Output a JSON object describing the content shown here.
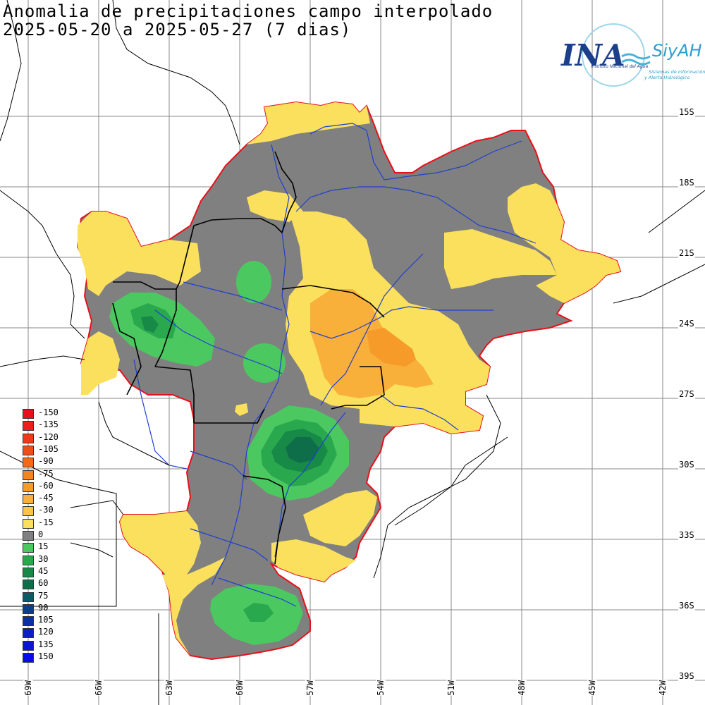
{
  "title": {
    "line1": "Anomalia de precipitaciones campo interpolado",
    "line2": "2025-05-20 a 2025-05-27 (7 dias)"
  },
  "logo": {
    "name": "INA",
    "brand": "SiyAH",
    "subtitle": "Instituto Nacional del Agua",
    "tagline1": "Sistemas de información",
    "tagline2": "y Alerta Hidrológico"
  },
  "legend": [
    {
      "label": "-150",
      "color": "#e8101a"
    },
    {
      "label": "-135",
      "color": "#ec2018"
    },
    {
      "label": "-120",
      "color": "#ee3a18"
    },
    {
      "label": "-105",
      "color": "#f04e18"
    },
    {
      "label": "-90",
      "color": "#f26a1a"
    },
    {
      "label": "-75",
      "color": "#f4841e"
    },
    {
      "label": "-60",
      "color": "#f69a2a"
    },
    {
      "label": "-45",
      "color": "#f8b03a"
    },
    {
      "label": "-30",
      "color": "#f9c648"
    },
    {
      "label": "-15",
      "color": "#fbe05e"
    },
    {
      "label": "0",
      "color": "#808080"
    },
    {
      "label": "15",
      "color": "#4cc860"
    },
    {
      "label": "30",
      "color": "#2aa84e"
    },
    {
      "label": "45",
      "color": "#188a48"
    },
    {
      "label": "60",
      "color": "#0f6e4a"
    },
    {
      "label": "75",
      "color": "#0c5a66"
    },
    {
      "label": "90",
      "color": "#0c3f8a"
    },
    {
      "label": "105",
      "color": "#0c2fa8"
    },
    {
      "label": "120",
      "color": "#0c20c0"
    },
    {
      "label": "135",
      "color": "#0c14d8"
    },
    {
      "label": "150",
      "color": "#0a0aee"
    }
  ],
  "lat_labels": [
    "15S",
    "18S",
    "21S",
    "24S",
    "27S",
    "30S",
    "33S",
    "36S",
    "39S"
  ],
  "lon_labels": [
    "69W",
    "66W",
    "63W",
    "60W",
    "57W",
    "54W",
    "51W",
    "48W",
    "45W",
    "42W"
  ],
  "colors": {
    "basin_outline": "#e8101a",
    "rivers": "#1f3fd0",
    "borders": "#000000",
    "grid": "#808080",
    "anomaly_neutral": "#808080",
    "anomaly_dry_light": "#fbe05e",
    "anomaly_dry": "#f8b03a",
    "anomaly_wet_light": "#4cc860",
    "anomaly_wet": "#2aa84e",
    "anomaly_wet_strong": "#0f6e4a"
  }
}
